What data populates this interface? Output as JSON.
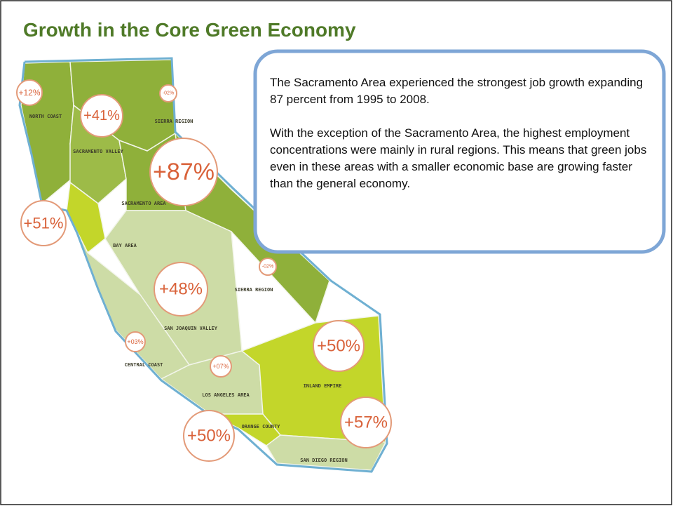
{
  "title": "Growth in the Core Green Economy",
  "callout": {
    "paragraphs": [
      "The Sacramento Area experienced the strongest job growth   expanding 87 percent from 1995 to 2008.",
      "With the exception of the Sacramento Area, the highest employment concentrations were mainly in rural regions. This means that green jobs even in these areas with a smaller economic base are growing faster than the general economy."
    ]
  },
  "map": {
    "regions": [
      {
        "name": "NORTH COAST"
      },
      {
        "name": "SIERRA REGION"
      },
      {
        "name": "SACRAMENTO VALLEY"
      },
      {
        "name": "SACRAMENTO AREA"
      },
      {
        "name": "BAY AREA"
      },
      {
        "name": "SIERRA REGION"
      },
      {
        "name": "SAN JOAQUIN VALLEY"
      },
      {
        "name": "CENTRAL COAST"
      },
      {
        "name": "LOS ANGELES AREA"
      },
      {
        "name": "INLAND EMPIRE"
      },
      {
        "name": "ORANGE COUNTY"
      },
      {
        "name": "SAN DIEGO REGION"
      }
    ],
    "bubbles": [
      {
        "label": "+12%"
      },
      {
        "label": "+41%"
      },
      {
        "label": "-02%"
      },
      {
        "label": "+87%"
      },
      {
        "label": "+51%"
      },
      {
        "label": "-02%"
      },
      {
        "label": "+48%"
      },
      {
        "label": "+03%"
      },
      {
        "label": "+07%"
      },
      {
        "label": "+50%"
      },
      {
        "label": "+57%"
      },
      {
        "label": "+50%"
      }
    ]
  }
}
